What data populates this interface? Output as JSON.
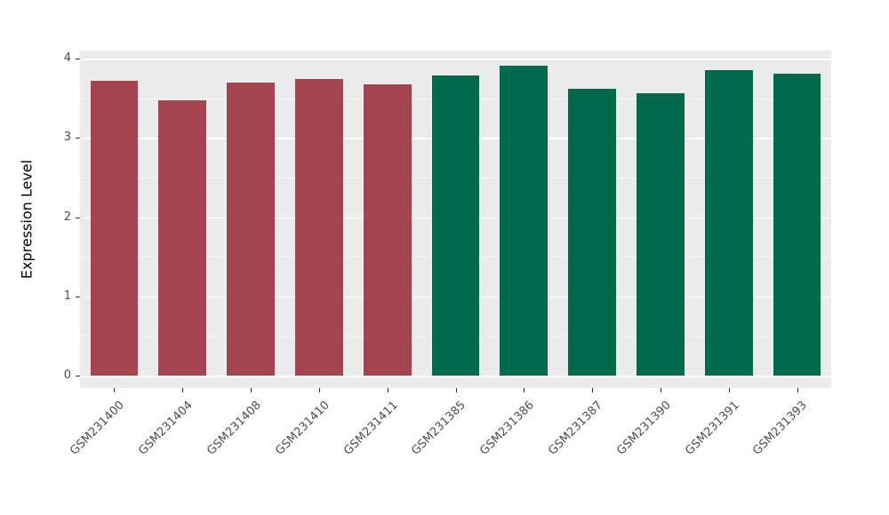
{
  "chart_data": {
    "type": "bar",
    "title": "",
    "xlabel": "",
    "ylabel": "Expression Level",
    "ylim": [
      0,
      4
    ],
    "yticks": [
      0,
      1,
      2,
      3,
      4
    ],
    "yticks_minor": [
      0.5,
      1.5,
      2.5,
      3.5
    ],
    "grid": true,
    "legend": false,
    "panel_background": "#EBEBEB",
    "categories": [
      "GSM231400",
      "GSM231404",
      "GSM231408",
      "GSM231410",
      "GSM231411",
      "GSM231385",
      "GSM231386",
      "GSM231387",
      "GSM231390",
      "GSM231391",
      "GSM231393"
    ],
    "values": [
      3.72,
      3.47,
      3.7,
      3.74,
      3.68,
      3.79,
      3.91,
      3.62,
      3.56,
      3.85,
      3.81
    ],
    "bar_colors": [
      "#A3444E",
      "#A3444E",
      "#A3444E",
      "#A3444E",
      "#A3444E",
      "#006B4C",
      "#006B4C",
      "#006B4C",
      "#006B4C",
      "#006B4C",
      "#006B4C"
    ]
  }
}
